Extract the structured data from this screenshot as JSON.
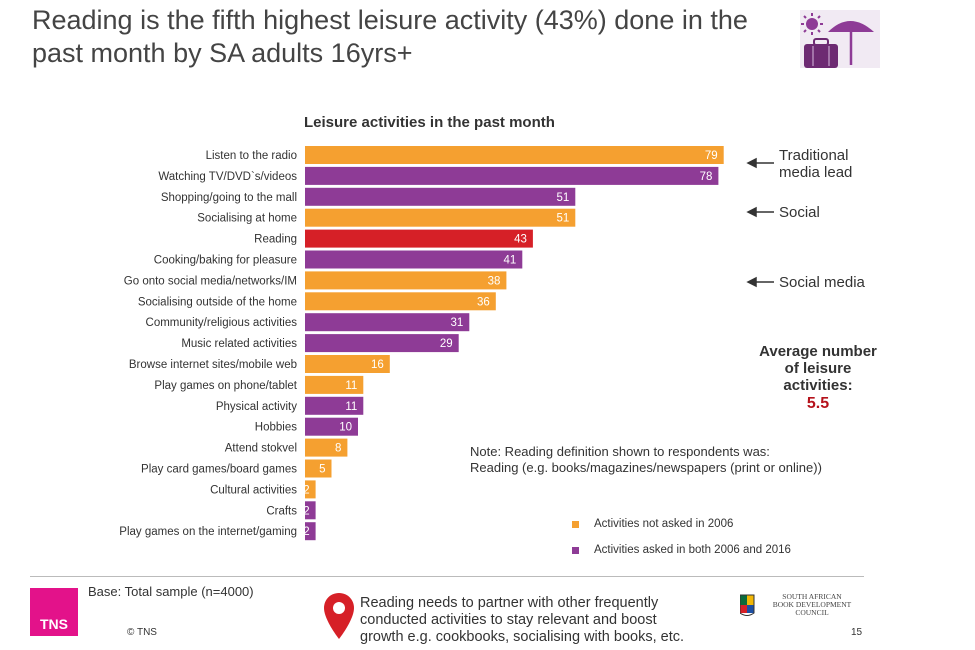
{
  "slide": {
    "title": "Reading is the fifth highest leisure activity (43%) done in the past month by SA adults 16yrs+",
    "page_number": "15"
  },
  "chart_data": {
    "type": "bar",
    "orientation": "horizontal",
    "title": "Leisure activities in the past month",
    "categories": [
      "Listen to the radio",
      "Watching TV/DVD`s/videos",
      "Shopping/going to the mall",
      "Socialising at home",
      "Reading",
      "Cooking/baking for pleasure",
      "Go onto social media/networks/IM",
      "Socialising outside of the home",
      "Community/religious activities",
      "Music related activities",
      "Browse internet sites/mobile web",
      "Play games on phone/tablet",
      "Physical activity",
      "Hobbies",
      "Attend stokvel",
      "Play card games/board games",
      "Cultural activities",
      "Crafts",
      "Play games on the internet/gaming"
    ],
    "values": [
      79,
      78,
      51,
      51,
      43,
      41,
      38,
      36,
      31,
      29,
      16,
      11,
      11,
      10,
      8,
      5,
      2,
      2,
      2
    ],
    "groups": [
      "new",
      "both",
      "both",
      "new",
      "highlight",
      "both",
      "new",
      "new",
      "both",
      "both",
      "new",
      "new",
      "both",
      "both",
      "new",
      "new",
      "new",
      "both",
      "both"
    ],
    "colors": {
      "new": "#f5a030",
      "both": "#8e3b96",
      "highlight": "#d62027"
    },
    "xlim": [
      0,
      100
    ],
    "legend": [
      {
        "label": "Activities not asked in 2006",
        "group": "new"
      },
      {
        "label": "Activities asked in both 2006 and 2016",
        "group": "both"
      }
    ],
    "annotations": [
      {
        "text": "Traditional media lead"
      },
      {
        "text": "Social"
      },
      {
        "text": "Social media"
      }
    ]
  },
  "annotations": {
    "traditional_line1": "Traditional",
    "traditional_line2": "media lead",
    "social": "Social",
    "social_media": "Social media"
  },
  "average": {
    "line1": "Average number",
    "line2": "of leisure",
    "line3": "activities:",
    "value": "5.5"
  },
  "note": {
    "line1": "Note: Reading definition shown to respondents was:",
    "line2": "Reading (e.g. books/magazines/newspapers (print or online))"
  },
  "footer": {
    "base": "Base: Total sample (n=4000)",
    "copyright": "© TNS",
    "brand": "TNS",
    "callout_line1": "Reading needs to partner with other frequently",
    "callout_line2": "conducted activities to stay relevant and boost",
    "callout_line3": "growth e.g. cookbooks, socialising with books, etc.",
    "partner_line1": "SOUTH AFRICAN",
    "partner_line2": "BOOK DEVELOPMENT",
    "partner_line3": "COUNCIL"
  }
}
